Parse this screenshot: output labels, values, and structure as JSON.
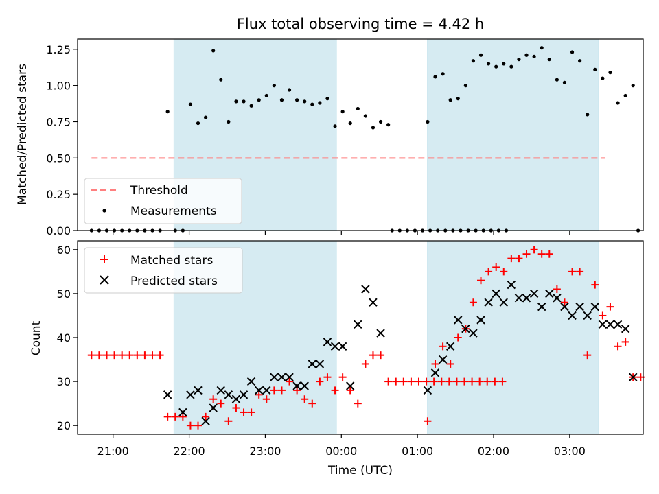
{
  "chart_data": [
    {
      "type": "scatter",
      "title": "Flux total observing time = 4.42 h",
      "ylabel": "Matched/Predicted stars",
      "xlabel": "",
      "x_unit": "UTC time",
      "xlim": [
        "20:32",
        "03:58"
      ],
      "ylim": [
        0,
        1.32
      ],
      "yticks": [
        "0.00",
        "0.25",
        "0.50",
        "0.75",
        "1.00",
        "1.25"
      ],
      "shaded_intervals": [
        [
          "21:48",
          "23:56"
        ],
        [
          "01:08",
          "03:23"
        ]
      ],
      "shade_color": "#add8e6",
      "legend_position": "lower-left",
      "threshold": {
        "name": "Threshold",
        "value": 0.5,
        "x_range": [
          "20:43",
          "03:28"
        ],
        "color": "#ff7f7f",
        "style": "dashed"
      },
      "series": [
        {
          "name": "Measurements",
          "color": "#000000",
          "marker": "dot",
          "points": [
            [
              "20:43",
              0
            ],
            [
              "20:49",
              0
            ],
            [
              "20:55",
              0
            ],
            [
              "21:01",
              0
            ],
            [
              "21:07",
              0
            ],
            [
              "21:13",
              0
            ],
            [
              "21:19",
              0
            ],
            [
              "21:25",
              0
            ],
            [
              "21:31",
              0
            ],
            [
              "21:37",
              0
            ],
            [
              "21:43",
              0.82
            ],
            [
              "21:49",
              0
            ],
            [
              "21:55",
              0
            ],
            [
              "22:01",
              0.87
            ],
            [
              "22:07",
              0.74
            ],
            [
              "22:13",
              0.78
            ],
            [
              "22:19",
              1.24
            ],
            [
              "22:25",
              1.04
            ],
            [
              "22:31",
              0.75
            ],
            [
              "22:37",
              0.89
            ],
            [
              "22:43",
              0.89
            ],
            [
              "22:49",
              0.86
            ],
            [
              "22:55",
              0.9
            ],
            [
              "23:01",
              0.93
            ],
            [
              "23:07",
              1.0
            ],
            [
              "23:13",
              0.9
            ],
            [
              "23:19",
              0.97
            ],
            [
              "23:25",
              0.9
            ],
            [
              "23:31",
              0.89
            ],
            [
              "23:37",
              0.87
            ],
            [
              "23:43",
              0.88
            ],
            [
              "23:49",
              0.91
            ],
            [
              "23:55",
              0.72
            ],
            [
              "00:01",
              0.82
            ],
            [
              "00:07",
              0.74
            ],
            [
              "00:13",
              0.84
            ],
            [
              "00:19",
              0.79
            ],
            [
              "00:25",
              0.71
            ],
            [
              "00:31",
              0.75
            ],
            [
              "00:37",
              0.73
            ],
            [
              "00:40",
              0
            ],
            [
              "00:46",
              0
            ],
            [
              "00:52",
              0
            ],
            [
              "00:58",
              0
            ],
            [
              "01:04",
              0
            ],
            [
              "01:10",
              0
            ],
            [
              "01:16",
              0
            ],
            [
              "01:22",
              0
            ],
            [
              "01:28",
              0
            ],
            [
              "01:34",
              0
            ],
            [
              "01:40",
              0
            ],
            [
              "01:46",
              0
            ],
            [
              "01:52",
              0
            ],
            [
              "01:58",
              0
            ],
            [
              "02:04",
              0
            ],
            [
              "02:10",
              0
            ],
            [
              "01:08",
              0.75
            ],
            [
              "01:14",
              1.06
            ],
            [
              "01:20",
              1.08
            ],
            [
              "01:26",
              0.9
            ],
            [
              "01:32",
              0.91
            ],
            [
              "01:38",
              1.0
            ],
            [
              "01:44",
              1.17
            ],
            [
              "01:50",
              1.21
            ],
            [
              "01:56",
              1.15
            ],
            [
              "02:02",
              1.13
            ],
            [
              "02:08",
              1.15
            ],
            [
              "02:14",
              1.13
            ],
            [
              "02:20",
              1.18
            ],
            [
              "02:26",
              1.21
            ],
            [
              "02:32",
              1.2
            ],
            [
              "02:38",
              1.26
            ],
            [
              "02:44",
              1.18
            ],
            [
              "02:50",
              1.04
            ],
            [
              "02:56",
              1.02
            ],
            [
              "03:02",
              1.23
            ],
            [
              "03:08",
              1.17
            ],
            [
              "03:14",
              0.8
            ],
            [
              "03:20",
              1.11
            ],
            [
              "03:26",
              1.05
            ],
            [
              "03:32",
              1.09
            ],
            [
              "03:38",
              0.88
            ],
            [
              "03:44",
              0.93
            ],
            [
              "03:50",
              1.0
            ],
            [
              "03:54",
              0
            ]
          ]
        }
      ]
    },
    {
      "type": "scatter",
      "title": "",
      "ylabel": "Count",
      "xlabel": "Time (UTC)",
      "xlim": [
        "20:32",
        "03:58"
      ],
      "ylim": [
        18,
        62
      ],
      "yticks": [
        "20",
        "30",
        "40",
        "50",
        "60"
      ],
      "xticks": [
        "21:00",
        "22:00",
        "23:00",
        "00:00",
        "01:00",
        "02:00",
        "03:00"
      ],
      "shaded_intervals": [
        [
          "21:48",
          "23:56"
        ],
        [
          "01:08",
          "03:23"
        ]
      ],
      "shade_color": "#add8e6",
      "legend_position": "upper-left",
      "series": [
        {
          "name": "Matched stars",
          "color": "#ff0000",
          "marker": "plus",
          "points": [
            [
              "20:43",
              36
            ],
            [
              "20:49",
              36
            ],
            [
              "20:55",
              36
            ],
            [
              "21:01",
              36
            ],
            [
              "21:07",
              36
            ],
            [
              "21:13",
              36
            ],
            [
              "21:19",
              36
            ],
            [
              "21:25",
              36
            ],
            [
              "21:31",
              36
            ],
            [
              "21:37",
              36
            ],
            [
              "21:43",
              22
            ],
            [
              "21:49",
              22
            ],
            [
              "21:55",
              22
            ],
            [
              "22:01",
              20
            ],
            [
              "22:07",
              20
            ],
            [
              "22:13",
              22
            ],
            [
              "22:19",
              26
            ],
            [
              "22:25",
              25
            ],
            [
              "22:31",
              21
            ],
            [
              "22:37",
              24
            ],
            [
              "22:43",
              23
            ],
            [
              "22:49",
              23
            ],
            [
              "22:55",
              27
            ],
            [
              "23:01",
              26
            ],
            [
              "23:07",
              28
            ],
            [
              "23:13",
              28
            ],
            [
              "23:19",
              30
            ],
            [
              "23:25",
              28
            ],
            [
              "23:31",
              26
            ],
            [
              "23:37",
              25
            ],
            [
              "23:43",
              30
            ],
            [
              "23:49",
              31
            ],
            [
              "23:55",
              28
            ],
            [
              "00:01",
              31
            ],
            [
              "00:07",
              28
            ],
            [
              "00:13",
              25
            ],
            [
              "00:19",
              34
            ],
            [
              "00:25",
              36
            ],
            [
              "00:31",
              36
            ],
            [
              "00:37",
              30
            ],
            [
              "00:43",
              30
            ],
            [
              "00:49",
              30
            ],
            [
              "00:55",
              30
            ],
            [
              "01:01",
              30
            ],
            [
              "01:07",
              30
            ],
            [
              "01:13",
              30
            ],
            [
              "01:19",
              30
            ],
            [
              "01:25",
              30
            ],
            [
              "01:31",
              30
            ],
            [
              "01:37",
              30
            ],
            [
              "01:43",
              30
            ],
            [
              "01:49",
              30
            ],
            [
              "01:55",
              30
            ],
            [
              "02:01",
              30
            ],
            [
              "02:07",
              30
            ],
            [
              "01:08",
              21
            ],
            [
              "01:14",
              34
            ],
            [
              "01:20",
              38
            ],
            [
              "01:26",
              34
            ],
            [
              "01:32",
              40
            ],
            [
              "01:38",
              42
            ],
            [
              "01:44",
              48
            ],
            [
              "01:50",
              53
            ],
            [
              "01:56",
              55
            ],
            [
              "02:02",
              56
            ],
            [
              "02:08",
              55
            ],
            [
              "02:14",
              58
            ],
            [
              "02:20",
              58
            ],
            [
              "02:26",
              59
            ],
            [
              "02:32",
              60
            ],
            [
              "02:38",
              59
            ],
            [
              "02:44",
              59
            ],
            [
              "02:50",
              51
            ],
            [
              "02:56",
              48
            ],
            [
              "03:02",
              55
            ],
            [
              "03:08",
              55
            ],
            [
              "03:14",
              36
            ],
            [
              "03:20",
              52
            ],
            [
              "03:26",
              45
            ],
            [
              "03:32",
              47
            ],
            [
              "03:38",
              38
            ],
            [
              "03:44",
              39
            ],
            [
              "03:50",
              31
            ],
            [
              "03:56",
              31
            ]
          ]
        },
        {
          "name": "Predicted stars",
          "color": "#000000",
          "marker": "x",
          "points": [
            [
              "21:43",
              27
            ],
            [
              "21:55",
              23
            ],
            [
              "22:01",
              27
            ],
            [
              "22:07",
              28
            ],
            [
              "22:13",
              21
            ],
            [
              "22:19",
              24
            ],
            [
              "22:25",
              28
            ],
            [
              "22:31",
              27
            ],
            [
              "22:37",
              26
            ],
            [
              "22:43",
              27
            ],
            [
              "22:49",
              30
            ],
            [
              "22:55",
              28
            ],
            [
              "23:01",
              28
            ],
            [
              "23:07",
              31
            ],
            [
              "23:13",
              31
            ],
            [
              "23:19",
              31
            ],
            [
              "23:25",
              29
            ],
            [
              "23:31",
              29
            ],
            [
              "23:37",
              34
            ],
            [
              "23:43",
              34
            ],
            [
              "23:49",
              39
            ],
            [
              "23:55",
              38
            ],
            [
              "00:01",
              38
            ],
            [
              "00:07",
              29
            ],
            [
              "00:13",
              43
            ],
            [
              "00:19",
              51
            ],
            [
              "00:25",
              48
            ],
            [
              "00:31",
              41
            ],
            [
              "01:08",
              28
            ],
            [
              "01:14",
              32
            ],
            [
              "01:20",
              35
            ],
            [
              "01:26",
              38
            ],
            [
              "01:32",
              44
            ],
            [
              "01:38",
              42
            ],
            [
              "01:44",
              41
            ],
            [
              "01:50",
              44
            ],
            [
              "01:56",
              48
            ],
            [
              "02:02",
              50
            ],
            [
              "02:08",
              48
            ],
            [
              "02:14",
              52
            ],
            [
              "02:20",
              49
            ],
            [
              "02:26",
              49
            ],
            [
              "02:32",
              50
            ],
            [
              "02:38",
              47
            ],
            [
              "02:44",
              50
            ],
            [
              "02:50",
              49
            ],
            [
              "02:56",
              47
            ],
            [
              "03:02",
              45
            ],
            [
              "03:08",
              47
            ],
            [
              "03:14",
              45
            ],
            [
              "03:20",
              47
            ],
            [
              "03:26",
              43
            ],
            [
              "03:32",
              43
            ],
            [
              "03:38",
              43
            ],
            [
              "03:44",
              42
            ],
            [
              "03:50",
              31
            ]
          ]
        }
      ]
    }
  ]
}
